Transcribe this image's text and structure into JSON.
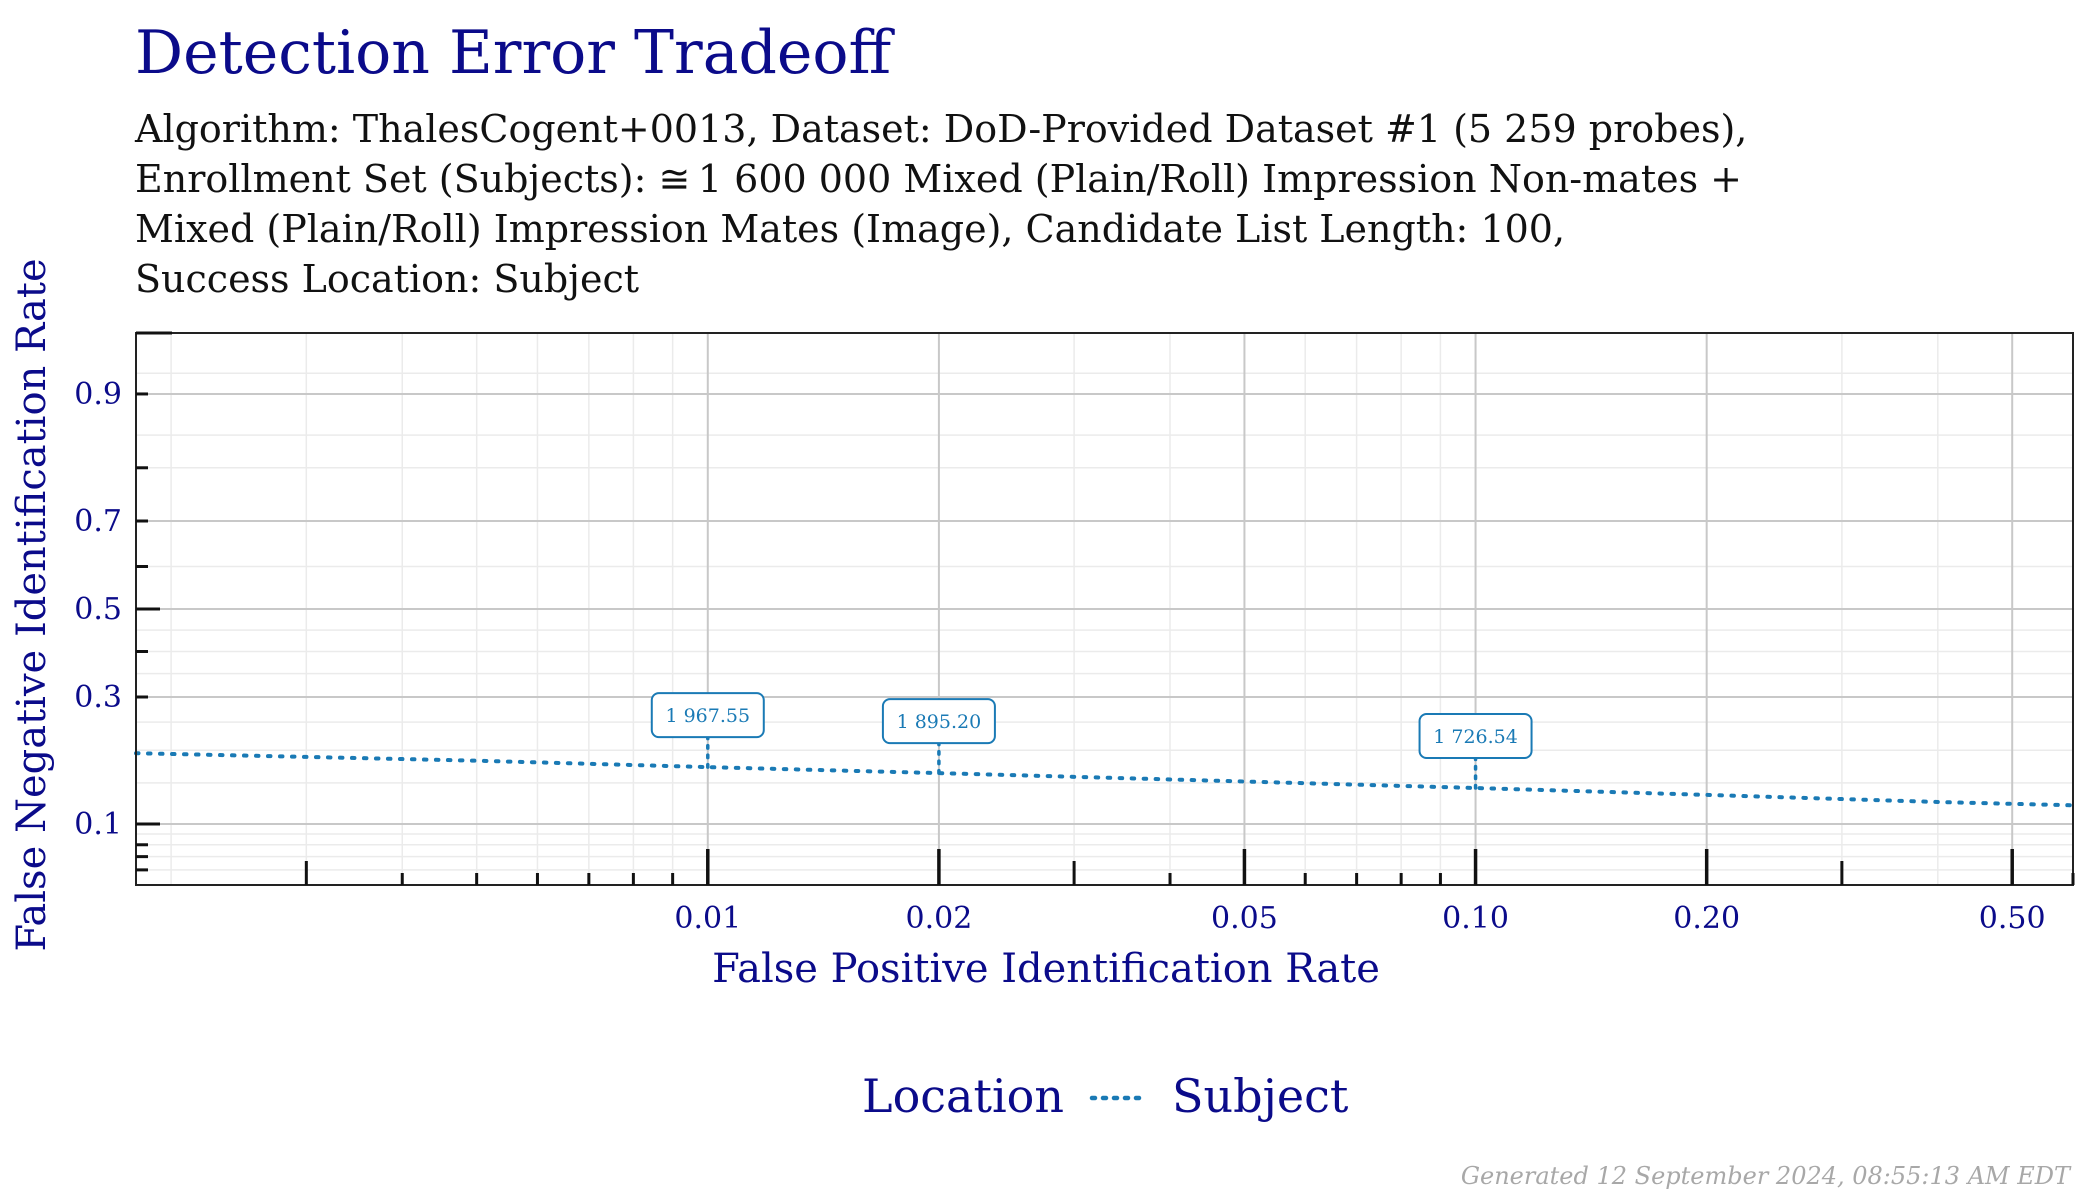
{
  "title": "Detection Error Tradeoff",
  "subtitle_lines": [
    "Algorithm: ThalesCogent+0013, Dataset: DoD-Provided Dataset #1 (5 259 probes),",
    "Enrollment Set (Subjects): ≅ 1 600 000 Mixed (Plain/Roll) Impression Non-mates +",
    "Mixed (Plain/Roll) Impression Mates (Image), Candidate List Length: 100,",
    "Success Location: Subject"
  ],
  "footer": "Generated 12 September 2024, 08:55:13 AM EDT",
  "colors": {
    "title": "#0b0b8a",
    "axis_text": "#0b0b8a",
    "series": "#1a7ab5",
    "grid_major": "#c8c8c8",
    "grid_minor": "#ebebeb",
    "footer": "#a8a8a8"
  },
  "chart_data": {
    "type": "line",
    "xlabel": "False Positive Identification Rate",
    "ylabel": "False Negative Identification Rate",
    "x_scale": "log",
    "y_scale": "probit",
    "xlim": [
      0.0018,
      0.6
    ],
    "ylim": [
      0.05,
      0.95
    ],
    "x_ticks": [
      0.01,
      0.02,
      0.05,
      0.1,
      0.2,
      0.5
    ],
    "x_tick_labels": [
      "0.01",
      "0.02",
      "0.05",
      "0.10",
      "0.20",
      "0.50"
    ],
    "y_ticks": [
      0.1,
      0.3,
      0.5,
      0.7,
      0.9
    ],
    "y_tick_labels": [
      "0.1",
      "0.3",
      "0.5",
      "0.7",
      "0.9"
    ],
    "grid": true,
    "legend": {
      "title": "Location",
      "position": "bottom",
      "entries": [
        "Subject"
      ]
    },
    "series": [
      {
        "name": "Subject",
        "style": "dotted",
        "x": [
          0.0018,
          0.003,
          0.005,
          0.01,
          0.02,
          0.05,
          0.1,
          0.2,
          0.4,
          0.6
        ],
        "y": [
          0.195,
          0.189,
          0.183,
          0.173,
          0.164,
          0.152,
          0.143,
          0.134,
          0.125,
          0.121
        ]
      }
    ],
    "annotations": [
      {
        "x": 0.01,
        "y": 0.173,
        "label": "1 967.55"
      },
      {
        "x": 0.02,
        "y": 0.164,
        "label": "1 895.20"
      },
      {
        "x": 0.1,
        "y": 0.143,
        "label": "1 726.54"
      }
    ]
  }
}
